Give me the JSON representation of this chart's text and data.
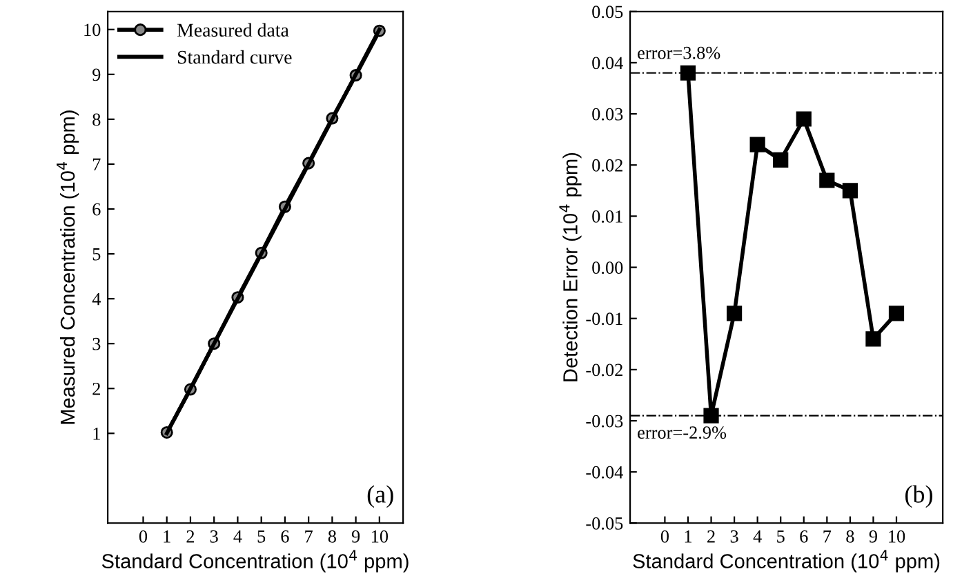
{
  "chart_data": [
    {
      "type": "line",
      "xlabel": "Standard Concentration (10$^{4}$ ppm)",
      "ylabel": "Measured Concentration (10$^{4}$ ppm)",
      "annotations": [
        "(a)"
      ],
      "xlim": [
        -1.5,
        11
      ],
      "ylim": [
        -1,
        10.4
      ],
      "xticks": [
        0,
        1,
        2,
        3,
        4,
        5,
        6,
        7,
        8,
        9,
        10
      ],
      "yticks": [
        1,
        2,
        3,
        4,
        5,
        6,
        7,
        8,
        9,
        10
      ],
      "legend": "top left",
      "grid": false,
      "series": [
        {
          "name": "Measured data",
          "color": "#000000",
          "marker": "circle",
          "x": [
            1,
            2,
            3,
            4,
            5,
            6,
            7,
            8,
            9,
            10
          ],
          "values": [
            1.02,
            1.98,
            3.0,
            4.03,
            5.02,
            6.05,
            7.02,
            8.02,
            8.98,
            9.97
          ]
        },
        {
          "name": "Standard curve",
          "color": "#000000",
          "marker": "none",
          "x": [
            1,
            10
          ],
          "values": [
            1,
            10
          ]
        }
      ]
    },
    {
      "type": "line",
      "xlabel": "Standard Concentration (10$^{4}$ ppm)",
      "ylabel": "Detection Error (10$^{4}$ ppm)",
      "annotations": [
        "(b)"
      ],
      "xlim": [
        -1.5,
        12
      ],
      "ylim": [
        -0.05,
        0.05
      ],
      "xticks": [
        0,
        1,
        2,
        3,
        4,
        5,
        6,
        7,
        8,
        9,
        10
      ],
      "yticks": [
        {
          "value": -0.05,
          "label": "-0.05"
        },
        {
          "value": -0.04,
          "label": "-0.04"
        },
        {
          "value": -0.03,
          "label": "-0.03"
        },
        {
          "value": -0.02,
          "label": "-0.02"
        },
        {
          "value": -0.01,
          "label": "-0.01"
        },
        {
          "value": 0,
          "label": "0.00"
        },
        {
          "value": 0.01,
          "label": "0.01"
        },
        {
          "value": 0.02,
          "label": "0.02"
        },
        {
          "value": 0.03,
          "label": "0.03"
        },
        {
          "value": 0.04,
          "label": "0.04"
        },
        {
          "value": 0.05,
          "label": "0.05"
        }
      ],
      "grid": false,
      "ref_lines": [
        {
          "axis": "y",
          "value": 0.038,
          "label": "error=3.8%",
          "color": "#000000",
          "line_style": "dashdot"
        },
        {
          "axis": "y",
          "value": -0.029,
          "label": "error=-2.9%",
          "color": "#000000",
          "line_style": "dashdot"
        }
      ],
      "series": [
        {
          "color": "#000000",
          "marker": "square",
          "x": [
            1,
            2,
            3,
            4,
            5,
            6,
            7,
            8,
            9,
            10
          ],
          "values": [
            0.038,
            -0.029,
            -0.009,
            0.024,
            0.021,
            0.029,
            0.017,
            0.015,
            -0.014,
            -0.009
          ]
        }
      ]
    }
  ]
}
